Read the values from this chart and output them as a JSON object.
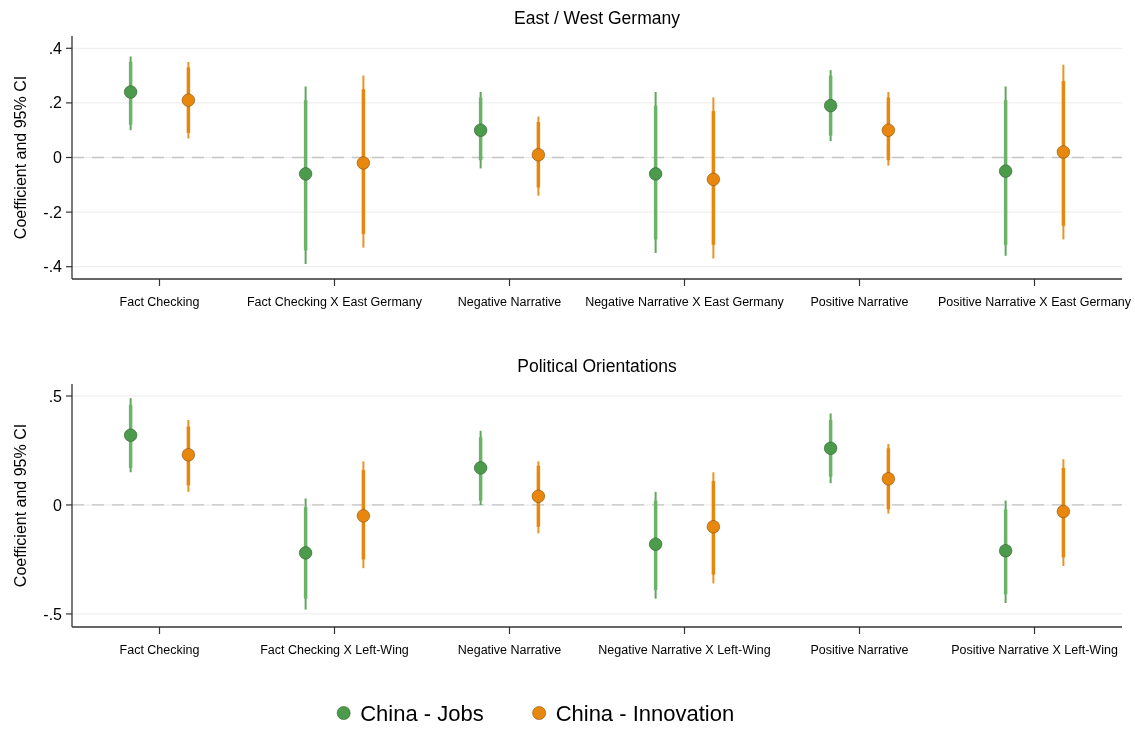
{
  "chart_data": [
    {
      "type": "scatter",
      "title": "East / West Germany",
      "ylabel": "Coefficient and 95% CI",
      "categories": [
        "Fact Checking",
        "Fact Checking X East Germany",
        "Negative Narrative",
        "Negative Narrative X East Germany",
        "Positive Narrative",
        "Positive Narrative X East Germany"
      ],
      "ylim": [
        -0.445,
        0.445
      ],
      "yticks": [
        {
          "value": -0.4,
          "label": "-.4"
        },
        {
          "value": -0.2,
          "label": "-.2"
        },
        0,
        {
          "value": 0.2,
          "label": ".2"
        },
        {
          "value": 0.4,
          "label": ".4"
        }
      ],
      "grid": "y",
      "marker": "circle",
      "ref_lines": [
        {
          "axis": "y",
          "value": 0,
          "color": "#c4c4c4",
          "line_style": "dashed"
        }
      ],
      "series": [
        {
          "color": "#4c9b4c",
          "values": [
            0.24,
            -0.06,
            0.1,
            -0.06,
            0.19,
            -0.05
          ],
          "errors": [
            [
              0.1,
              0.37
            ],
            [
              -0.39,
              0.26
            ],
            [
              -0.04,
              0.24
            ],
            [
              -0.35,
              0.24
            ],
            [
              0.06,
              0.32
            ],
            [
              -0.36,
              0.26
            ]
          ]
        },
        {
          "color": "#e8870e",
          "values": [
            0.21,
            -0.02,
            0.01,
            -0.08,
            0.1,
            0.02
          ],
          "errors": [
            [
              0.07,
              0.35
            ],
            [
              -0.33,
              0.3
            ],
            [
              -0.14,
              0.15
            ],
            [
              -0.37,
              0.22
            ],
            [
              -0.03,
              0.24
            ],
            [
              -0.3,
              0.34
            ]
          ]
        },
        {
          "type": "bar",
          "color": "#6ab46a",
          "base": [
            0.12,
            -0.34,
            -0.01,
            -0.3,
            0.08,
            -0.32
          ],
          "values": [
            0.23,
            0.55,
            0.23,
            0.49,
            0.22,
            0.53
          ]
        },
        {
          "type": "bar",
          "color": "#e8870e",
          "base": [
            0.09,
            -0.28,
            -0.11,
            -0.32,
            -0.01,
            -0.25
          ],
          "values": [
            0.24,
            0.53,
            0.24,
            0.49,
            0.23,
            0.53
          ]
        }
      ]
    },
    {
      "type": "scatter",
      "title": "Political Orientations",
      "ylabel": "Coefficient and 95% CI",
      "categories": [
        "Fact Checking",
        "Fact Checking X Left-Wing",
        "Negative Narrative",
        "Negative Narrative X Left-Wing",
        "Positive Narrative",
        "Positive Narrative X Left-Wing"
      ],
      "ylim": [
        -0.56,
        0.555
      ],
      "yticks": [
        {
          "value": -0.5,
          "label": "-.5"
        },
        0,
        {
          "value": 0.5,
          "label": ".5"
        }
      ],
      "grid": "y",
      "marker": "circle",
      "legend": "bottom",
      "ref_lines": [
        {
          "axis": "y",
          "value": 0,
          "color": "#c4c4c4",
          "line_style": "dashed"
        }
      ],
      "series": [
        {
          "name": "China - Jobs",
          "color": "#4c9b4c",
          "values": [
            0.32,
            -0.22,
            0.17,
            -0.18,
            0.26,
            -0.21
          ],
          "errors": [
            [
              0.15,
              0.49
            ],
            [
              -0.48,
              0.03
            ],
            [
              0.0,
              0.34
            ],
            [
              -0.43,
              0.06
            ],
            [
              0.1,
              0.42
            ],
            [
              -0.45,
              0.02
            ]
          ]
        },
        {
          "name": "China - Innovation",
          "color": "#e8870e",
          "values": [
            0.23,
            -0.05,
            0.04,
            -0.1,
            0.12,
            -0.03
          ],
          "errors": [
            [
              0.06,
              0.39
            ],
            [
              -0.29,
              0.2
            ],
            [
              -0.13,
              0.2
            ],
            [
              -0.36,
              0.15
            ],
            [
              -0.04,
              0.28
            ],
            [
              -0.28,
              0.21
            ]
          ]
        },
        {
          "type": "bar",
          "color": "#6ab46a",
          "base": [
            0.17,
            -0.43,
            0.02,
            -0.39,
            0.13,
            -0.41
          ],
          "values": [
            0.29,
            0.42,
            0.29,
            0.41,
            0.26,
            0.39
          ]
        },
        {
          "type": "bar",
          "color": "#e8870e",
          "base": [
            0.09,
            -0.25,
            -0.1,
            -0.32,
            -0.02,
            -0.24
          ],
          "values": [
            0.27,
            0.41,
            0.28,
            0.43,
            0.28,
            0.41
          ]
        }
      ]
    }
  ]
}
